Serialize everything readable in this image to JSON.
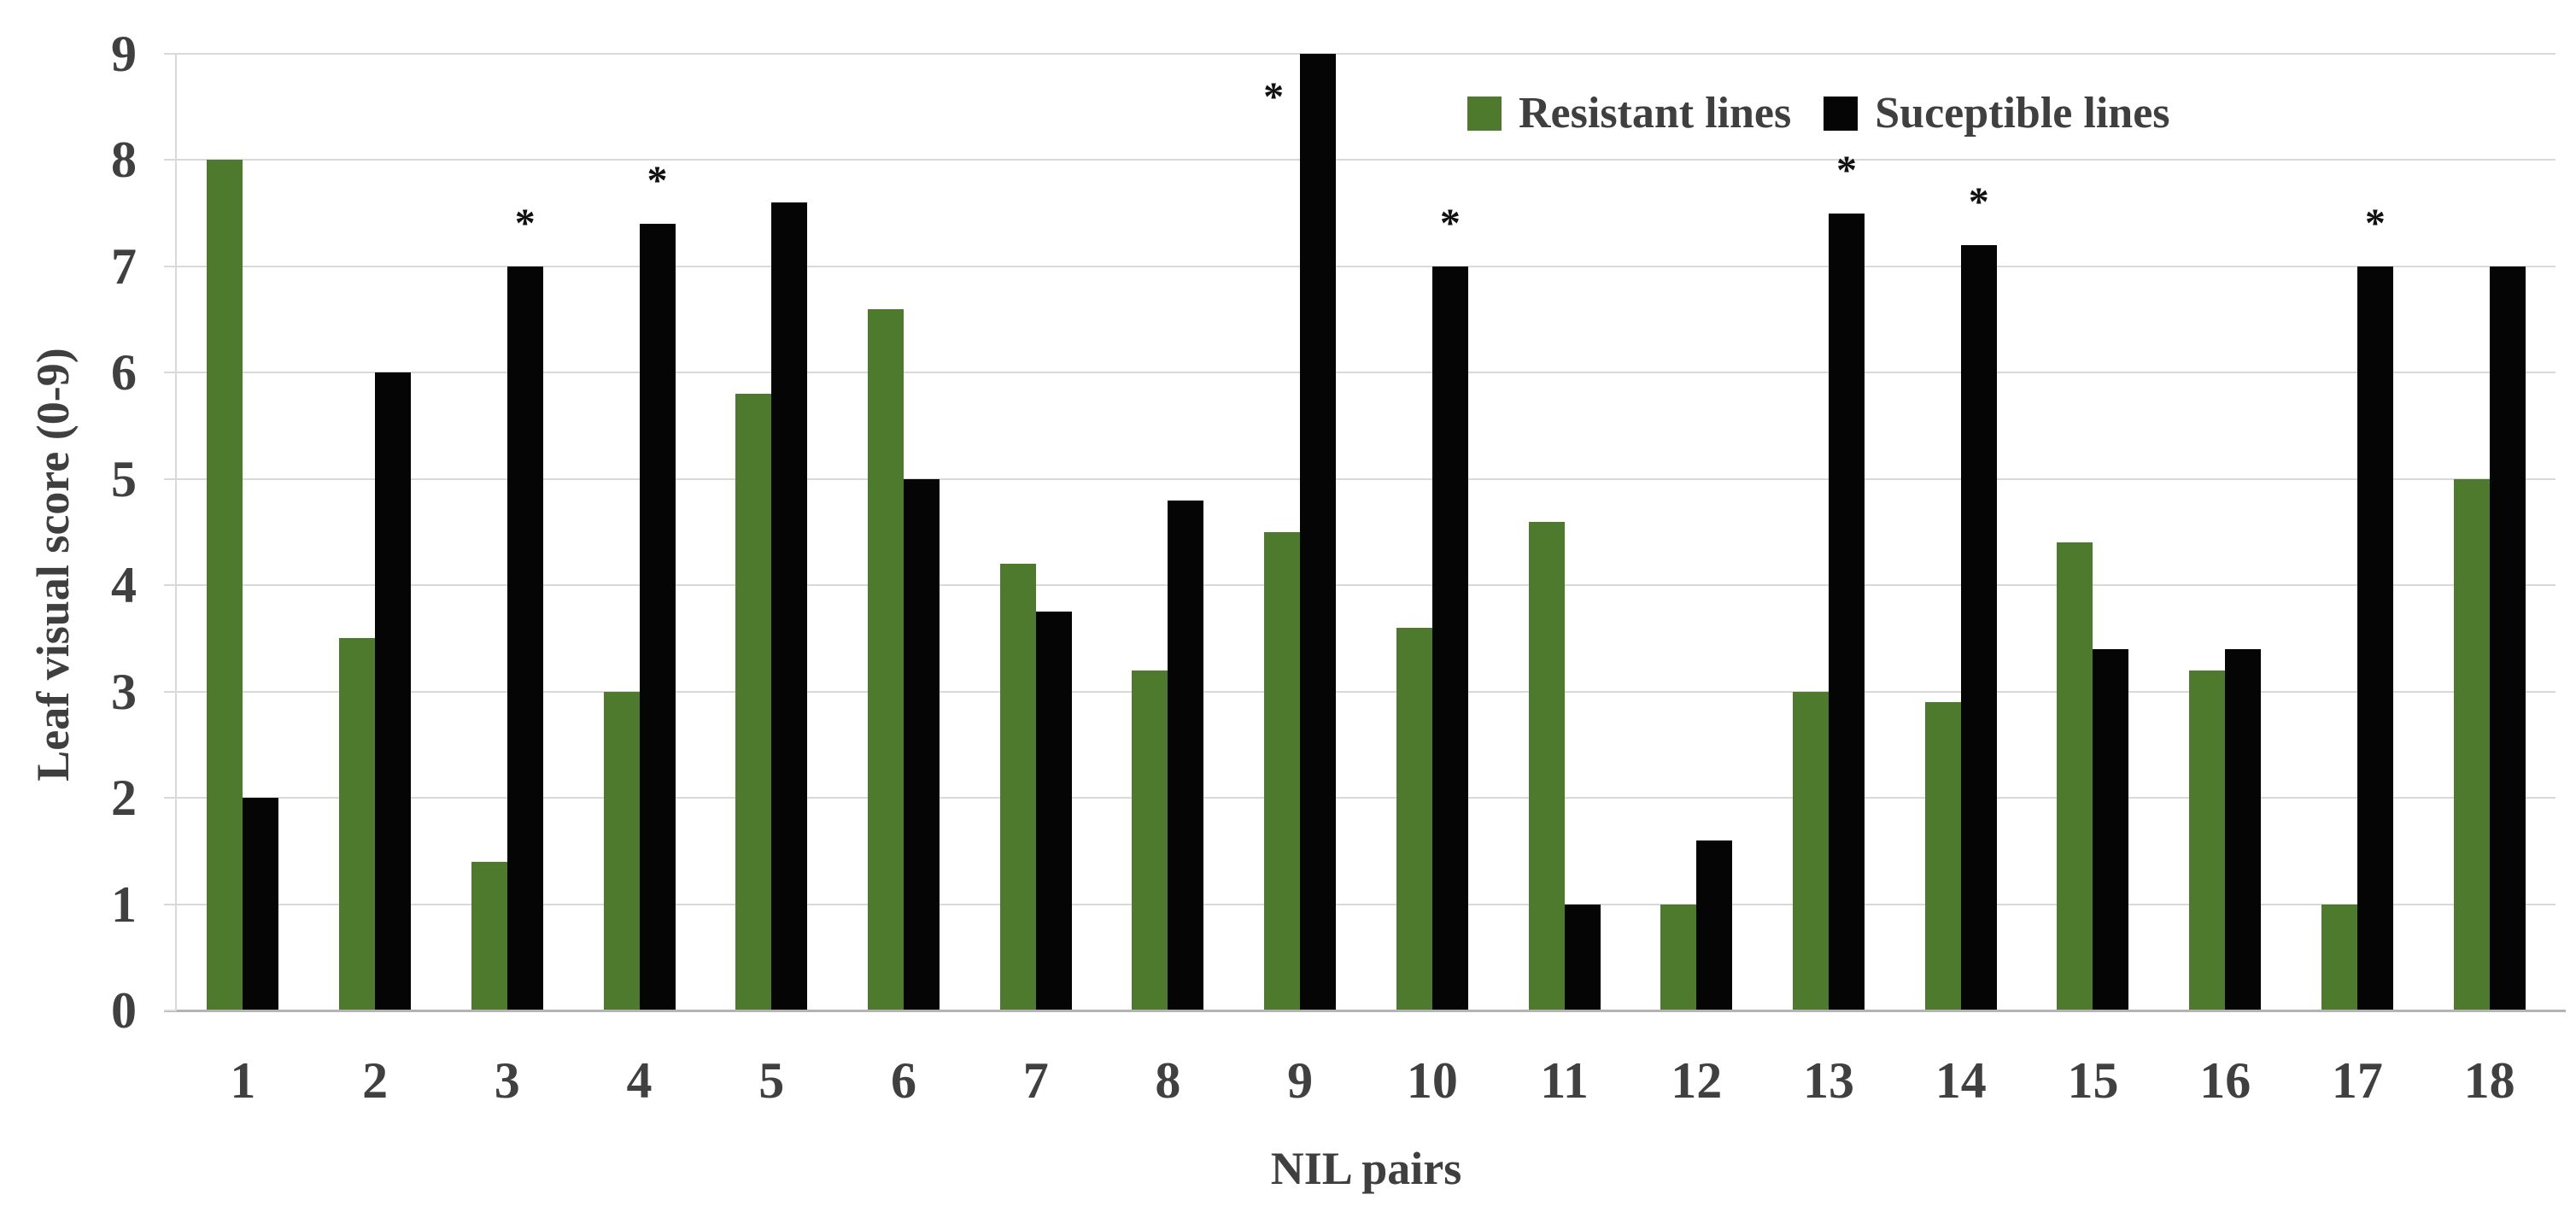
{
  "chart_data": {
    "type": "bar",
    "title": "",
    "categories": [
      "1",
      "2",
      "3",
      "4",
      "5",
      "6",
      "7",
      "8",
      "9",
      "10",
      "11",
      "12",
      "13",
      "14",
      "15",
      "16",
      "17",
      "18"
    ],
    "series": [
      {
        "name": "Resistant lines",
        "color": "#4e7a2e",
        "values": [
          8.0,
          3.5,
          1.4,
          3.0,
          5.8,
          6.6,
          4.2,
          3.2,
          4.5,
          3.6,
          4.6,
          1.0,
          3.0,
          2.9,
          4.4,
          3.2,
          1.0,
          5.0
        ]
      },
      {
        "name": "Suceptible lines",
        "color": "#050505",
        "values": [
          2.0,
          6.0,
          7.0,
          7.4,
          7.6,
          5.0,
          3.75,
          4.8,
          9.0,
          7.0,
          1.0,
          1.6,
          7.5,
          7.2,
          3.4,
          3.4,
          7.0,
          7.0
        ]
      }
    ],
    "significance_marker": "*",
    "significant_categories": [
      "3",
      "4",
      "9",
      "10",
      "13",
      "14",
      "17"
    ],
    "xlabel": "NIL pairs",
    "ylabel": "Leaf visual score (0-9)",
    "ylim": [
      0,
      9
    ],
    "y_ticks": [
      0,
      1,
      2,
      3,
      4,
      5,
      6,
      7,
      8,
      9
    ],
    "grid": "horizontal",
    "legend_position": "top-right",
    "colors": {
      "gridline": "#d9d9d9",
      "axis_line": "#b3b3b3",
      "tick_text": "#404040",
      "axis_title_text": "#3f3f3f",
      "background": "#ffffff"
    }
  }
}
